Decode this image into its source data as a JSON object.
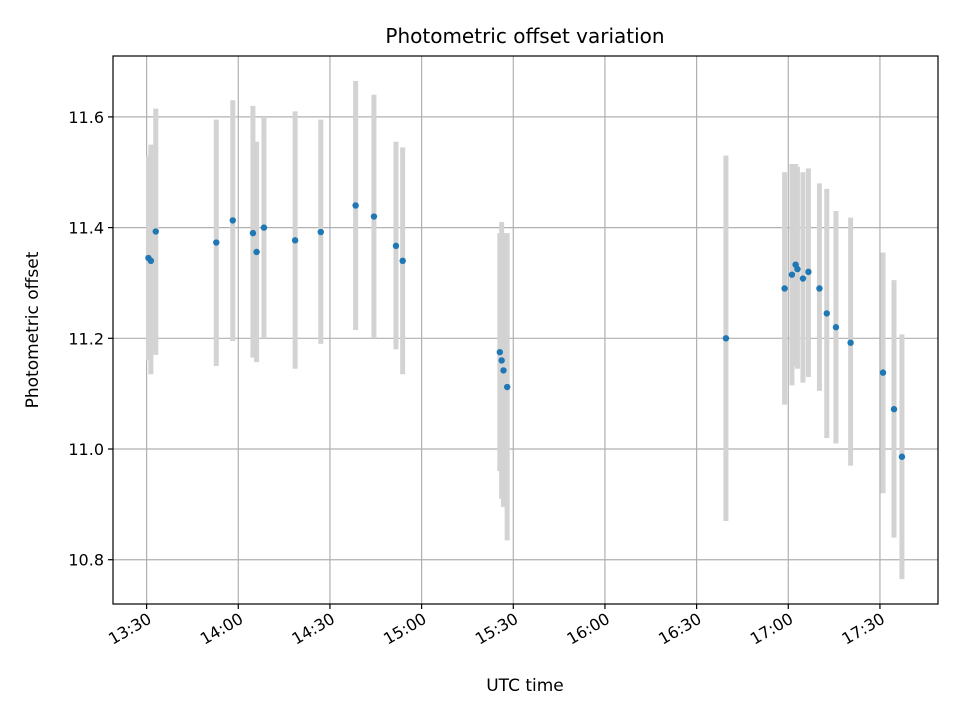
{
  "chart_data": {
    "type": "scatter",
    "title": "Photometric offset variation",
    "xlabel": "UTC time",
    "ylabel": "Photometric offset",
    "xlim": [
      "13:19",
      "17:49"
    ],
    "ylim": [
      10.72,
      11.71
    ],
    "grid": true,
    "x_ticks": [
      "13:30",
      "14:00",
      "14:30",
      "15:00",
      "15:30",
      "16:00",
      "16:30",
      "17:00",
      "17:30"
    ],
    "y_ticks": [
      "10.8",
      "11.0",
      "11.2",
      "11.4",
      "11.6"
    ],
    "colors": {
      "points": "#1f77b4",
      "error_bars": "#d3d3d3",
      "grid": "#b0b0b0"
    },
    "points": [
      {
        "time": "13:30:36",
        "value": 11.345,
        "low": 11.16,
        "high": 11.53
      },
      {
        "time": "13:31:24",
        "value": 11.34,
        "low": 11.135,
        "high": 11.55
      },
      {
        "time": "13:33:00",
        "value": 11.393,
        "low": 11.17,
        "high": 11.615
      },
      {
        "time": "13:52:48",
        "value": 11.373,
        "low": 11.15,
        "high": 11.595
      },
      {
        "time": "13:58:12",
        "value": 11.413,
        "low": 11.195,
        "high": 11.63
      },
      {
        "time": "14:04:48",
        "value": 11.39,
        "low": 11.165,
        "high": 11.62
      },
      {
        "time": "14:06:00",
        "value": 11.356,
        "low": 11.157,
        "high": 11.555
      },
      {
        "time": "14:08:24",
        "value": 11.4,
        "low": 11.2,
        "high": 11.6
      },
      {
        "time": "14:18:36",
        "value": 11.377,
        "low": 11.145,
        "high": 11.61
      },
      {
        "time": "14:27:00",
        "value": 11.392,
        "low": 11.19,
        "high": 11.595
      },
      {
        "time": "14:38:24",
        "value": 11.44,
        "low": 11.215,
        "high": 11.665
      },
      {
        "time": "14:44:24",
        "value": 11.42,
        "low": 11.2,
        "high": 11.64
      },
      {
        "time": "14:51:36",
        "value": 11.367,
        "low": 11.18,
        "high": 11.555
      },
      {
        "time": "14:53:48",
        "value": 11.34,
        "low": 11.135,
        "high": 11.545
      },
      {
        "time": "15:25:36",
        "value": 11.175,
        "low": 10.96,
        "high": 11.39
      },
      {
        "time": "15:26:12",
        "value": 11.16,
        "low": 10.91,
        "high": 11.41
      },
      {
        "time": "15:26:48",
        "value": 11.142,
        "low": 10.895,
        "high": 11.39
      },
      {
        "time": "15:28:00",
        "value": 11.112,
        "low": 10.835,
        "high": 11.39
      },
      {
        "time": "16:39:36",
        "value": 11.2,
        "low": 10.87,
        "high": 11.53
      },
      {
        "time": "16:58:48",
        "value": 11.29,
        "low": 11.08,
        "high": 11.5
      },
      {
        "time": "17:01:12",
        "value": 11.315,
        "low": 11.115,
        "high": 11.515
      },
      {
        "time": "17:02:24",
        "value": 11.333,
        "low": 11.15,
        "high": 11.515
      },
      {
        "time": "17:03:00",
        "value": 11.325,
        "low": 11.145,
        "high": 11.51
      },
      {
        "time": "17:04:48",
        "value": 11.308,
        "low": 11.12,
        "high": 11.5
      },
      {
        "time": "17:06:36",
        "value": 11.32,
        "low": 11.13,
        "high": 11.507
      },
      {
        "time": "17:10:12",
        "value": 11.29,
        "low": 11.105,
        "high": 11.48
      },
      {
        "time": "17:12:36",
        "value": 11.245,
        "low": 11.02,
        "high": 11.47
      },
      {
        "time": "17:15:36",
        "value": 11.22,
        "low": 11.01,
        "high": 11.43
      },
      {
        "time": "17:20:24",
        "value": 11.192,
        "low": 10.97,
        "high": 11.418
      },
      {
        "time": "17:31:00",
        "value": 11.138,
        "low": 10.92,
        "high": 11.355
      },
      {
        "time": "17:34:36",
        "value": 11.072,
        "low": 10.84,
        "high": 11.305
      },
      {
        "time": "17:37:12",
        "value": 10.986,
        "low": 10.765,
        "high": 11.207
      }
    ]
  }
}
